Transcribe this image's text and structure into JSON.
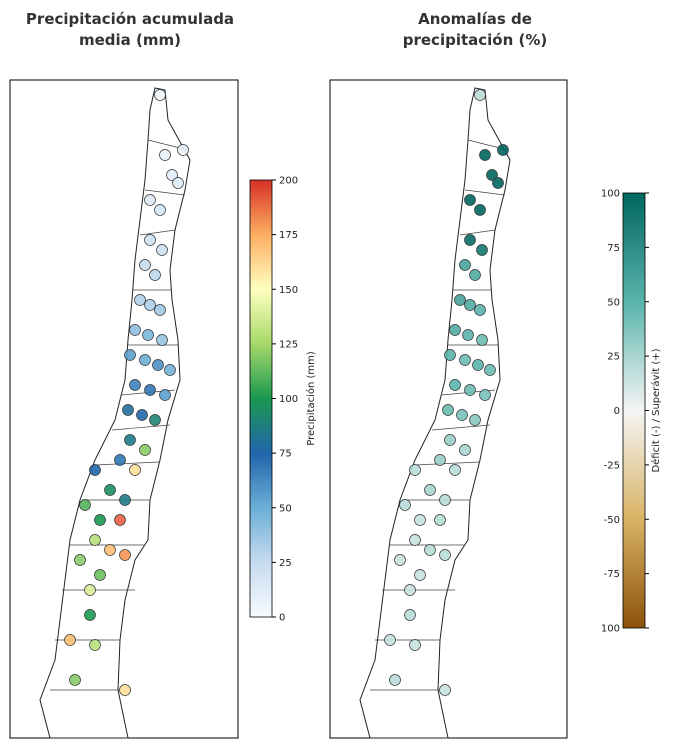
{
  "chart_data": [
    {
      "type": "map-points",
      "title": "Precipitación acumulada media (mm)",
      "colorbar_label": "Precipitación (mm)",
      "clim": [
        0,
        200
      ],
      "cticks": [
        0,
        25,
        50,
        75,
        100,
        125,
        150,
        175,
        200
      ],
      "colormap": [
        "#f7fbff",
        "#c6dbef",
        "#6baed6",
        "#2166ac",
        "#1a9850",
        "#a6d96a",
        "#ffffbf",
        "#fdae61",
        "#d73027"
      ],
      "values": [
        5,
        8,
        6,
        10,
        12,
        15,
        18,
        20,
        22,
        25,
        28,
        30,
        32,
        35,
        40,
        45,
        38,
        55,
        50,
        60,
        48,
        65,
        70,
        55,
        80,
        75,
        90,
        85,
        120,
        70,
        160,
        75,
        95,
        85,
        110,
        100,
        190,
        130,
        170,
        180,
        120,
        115,
        140,
        100,
        170,
        130,
        160,
        120
      ]
    },
    {
      "type": "map-points",
      "title": "Anomalías de precipitación (%)",
      "colorbar_label": "Déficit (-) / Superávit (+)",
      "clim": [
        -100,
        100
      ],
      "cticks": [
        {
          "value": -100,
          "label": "100"
        },
        -75,
        -50,
        -25,
        0,
        25,
        50,
        75,
        100
      ],
      "colormap": [
        "#8c510a",
        "#d8b365",
        "#f5f5f5",
        "#5ab4ac",
        "#01665e"
      ],
      "values": [
        20,
        100,
        100,
        100,
        100,
        100,
        100,
        95,
        90,
        60,
        55,
        60,
        55,
        50,
        55,
        50,
        45,
        50,
        45,
        50,
        45,
        50,
        45,
        40,
        45,
        40,
        35,
        30,
        25,
        30,
        20,
        20,
        25,
        20,
        20,
        15,
        20,
        15,
        20,
        20,
        15,
        15,
        15,
        20,
        15,
        15,
        15,
        20
      ]
    }
  ]
}
